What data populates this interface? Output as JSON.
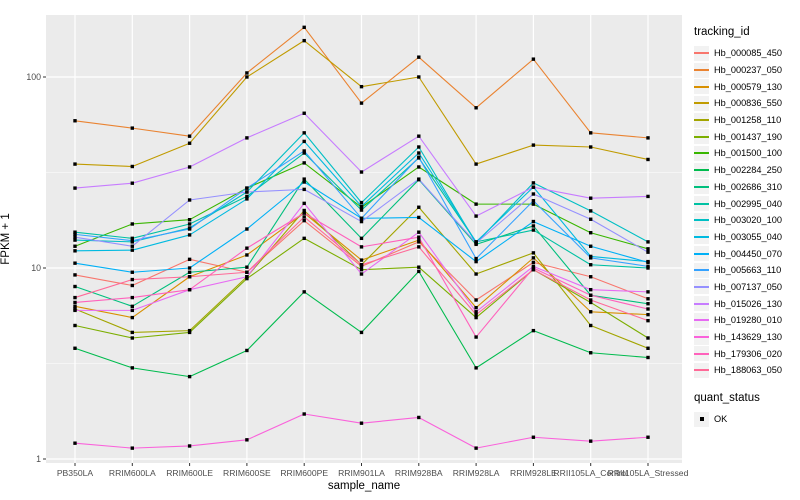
{
  "colors": {
    "panel_bg": "#EBEBEB",
    "grid": "#FFFFFF",
    "tick_text": "#4D4D4D",
    "tick_mark": "#333333",
    "point": "#000000",
    "legend_key_bg": "#F2F2F2"
  },
  "legend": {
    "tracking_title": "tracking_id",
    "quant_title": "quant_status",
    "quant_items": [
      {
        "label": "OK",
        "symbol": "black-square"
      }
    ]
  },
  "chart_data": {
    "type": "line",
    "title": "",
    "xlabel": "sample_name",
    "ylabel": "FPKM + 1",
    "y_scale": "log10",
    "ylim": [
      0.95,
      211
    ],
    "grid": true,
    "legend_position": "right",
    "y_ticks": [
      {
        "label": "1",
        "value": 1
      },
      {
        "label": "10",
        "value": 10
      },
      {
        "label": "100",
        "value": 100
      }
    ],
    "y_minor": [
      3.162,
      31.62
    ],
    "categories": [
      "PB350LA",
      "RRIM600LA",
      "RRIM600LE",
      "RRIM600SE",
      "RRIM600PE",
      "RRIM901LA",
      "RRIM928BA",
      "RRIM928LA",
      "RRIM928LE",
      "RRII105LA_Control",
      "RRII105LA_Stressed"
    ],
    "series": [
      {
        "name": "Hb_000085_450",
        "color": "#F8766D",
        "values": [
          9.2,
          8.1,
          11.1,
          9.5,
          17.7,
          10.2,
          13.7,
          6.8,
          10.7,
          9.0,
          6.9
        ]
      },
      {
        "name": "Hb_000237_050",
        "color": "#EA8331",
        "values": [
          59,
          54,
          49,
          105,
          182,
          73,
          127,
          69,
          124,
          51,
          48
        ]
      },
      {
        "name": "Hb_000579_130",
        "color": "#D89000",
        "values": [
          6.3,
          5.5,
          9.0,
          11.7,
          19.4,
          11.0,
          14.0,
          6.2,
          11.3,
          5.9,
          5.7
        ]
      },
      {
        "name": "Hb_000836_550",
        "color": "#C09B00",
        "values": [
          35,
          34,
          45,
          100,
          155,
          89,
          100,
          35,
          44,
          43,
          37
        ]
      },
      {
        "name": "Hb_001258_110",
        "color": "#A3A500",
        "values": [
          6.1,
          4.6,
          4.7,
          9.0,
          20,
          10.4,
          20.8,
          9.3,
          12.0,
          5.0,
          3.8
        ]
      },
      {
        "name": "Hb_001437_190",
        "color": "#7CAE00",
        "values": [
          5.0,
          4.3,
          4.6,
          8.8,
          14.3,
          9.8,
          10.1,
          5.5,
          9.8,
          6.6,
          4.3
        ]
      },
      {
        "name": "Hb_001500_100",
        "color": "#39B600",
        "values": [
          13.0,
          17.0,
          17.9,
          26.2,
          35.5,
          20.8,
          33.8,
          21.6,
          21.6,
          15.3,
          12.6
        ]
      },
      {
        "name": "Hb_002284_250",
        "color": "#00BB4E",
        "values": [
          3.8,
          3.0,
          2.7,
          3.7,
          7.5,
          4.6,
          9.6,
          3.0,
          4.7,
          3.6,
          3.4
        ]
      },
      {
        "name": "Hb_002686_310",
        "color": "#00BF7D",
        "values": [
          8.0,
          6.3,
          9.5,
          10.1,
          29.2,
          14.3,
          29.0,
          13.3,
          16.6,
          7.2,
          6.5
        ]
      },
      {
        "name": "Hb_002995_040",
        "color": "#00C1A3",
        "values": [
          15.4,
          14.3,
          17.0,
          23.7,
          40,
          20.1,
          37.7,
          13.7,
          15.8,
          10.4,
          10.0
        ]
      },
      {
        "name": "Hb_003020_100",
        "color": "#00BFC4",
        "values": [
          14.0,
          13.7,
          16.2,
          25.0,
          51,
          22.0,
          43,
          13.5,
          27.9,
          19.9,
          13.7
        ]
      },
      {
        "name": "Hb_003055_040",
        "color": "#00BAE0",
        "values": [
          12.3,
          12.4,
          14.9,
          23.0,
          46,
          21.0,
          40,
          13.7,
          26.5,
          11.5,
          10.8
        ]
      },
      {
        "name": "Hb_004450_070",
        "color": "#00B0F6",
        "values": [
          10.6,
          9.5,
          10.0,
          16.0,
          28.2,
          18.2,
          18.4,
          10.8,
          17.5,
          13.0,
          10.7
        ]
      },
      {
        "name": "Hb_005663_110",
        "color": "#35A2FF",
        "values": [
          15.0,
          13.9,
          16.0,
          26.2,
          41,
          18.2,
          38,
          11.2,
          22.5,
          11.3,
          10.2
        ]
      },
      {
        "name": "Hb_007137_050",
        "color": "#9590FF",
        "values": [
          14.5,
          13.0,
          22.7,
          25.0,
          25.8,
          17.5,
          29.2,
          13.5,
          24.4,
          18.0,
          12.1
        ]
      },
      {
        "name": "Hb_015026_130",
        "color": "#C77CFF",
        "values": [
          26.2,
          27.8,
          33.8,
          48,
          64.6,
          31.8,
          49,
          18.7,
          26.5,
          23.2,
          23.7
        ]
      },
      {
        "name": "Hb_019280_010",
        "color": "#E76BF3",
        "values": [
          6.0,
          6.0,
          7.7,
          9.0,
          21.8,
          9.3,
          15.4,
          5.9,
          10.2,
          7.7,
          7.5
        ]
      },
      {
        "name": "Hb_143629_130",
        "color": "#FA62DB",
        "values": [
          1.21,
          1.14,
          1.17,
          1.26,
          1.72,
          1.54,
          1.65,
          1.14,
          1.3,
          1.24,
          1.3
        ]
      },
      {
        "name": "Hb_179306_020",
        "color": "#FF62BC",
        "values": [
          6.6,
          7.0,
          7.7,
          12.7,
          19.4,
          12.9,
          14.5,
          4.35,
          10.0,
          7.2,
          6.1
        ]
      },
      {
        "name": "Hb_188063_050",
        "color": "#FF6A98",
        "values": [
          7.0,
          8.7,
          9.0,
          9.5,
          18.5,
          10.4,
          12.9,
          5.7,
          9.8,
          6.8,
          5.3
        ]
      }
    ]
  }
}
